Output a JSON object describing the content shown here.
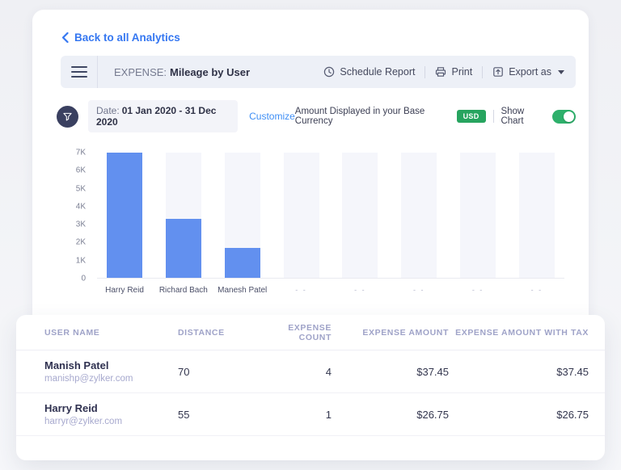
{
  "back_link": "Back to all Analytics",
  "toolbar": {
    "report_type": "EXPENSE:",
    "report_title": "Mileage by User",
    "schedule_label": "Schedule Report",
    "print_label": "Print",
    "export_label": "Export as"
  },
  "filter_bar": {
    "date_label": "Date:",
    "date_range": "01 Jan 2020 - 31 Dec 2020",
    "customize_label": "Customize",
    "currency_note": "Amount Displayed in your Base Currency",
    "currency_badge": "USD",
    "show_chart_label": "Show Chart",
    "show_chart_on": true
  },
  "chart_data": {
    "type": "bar",
    "title": "",
    "xlabel": "",
    "ylabel": "",
    "categories": [
      "Harry Reid",
      "Richard Bach",
      "Manesh Patel",
      "- -",
      "- -",
      "- -",
      "- -",
      "- -"
    ],
    "values": [
      7000,
      3300,
      1650,
      0,
      0,
      0,
      0,
      0
    ],
    "yticks": [
      "7K",
      "6K",
      "5K",
      "4K",
      "3K",
      "2K",
      "1K",
      "0"
    ],
    "ylim": [
      0,
      7000
    ],
    "grid": false,
    "legend": false,
    "bar_color": "#6290ef",
    "track_color": "#f5f6fb"
  },
  "table": {
    "headers": [
      "USER NAME",
      "DISTANCE",
      "EXPENSE COUNT",
      "EXPENSE AMOUNT",
      "EXPENSE AMOUNT WITH TAX"
    ],
    "header_align": [
      "l",
      "l",
      "r",
      "r",
      "r"
    ],
    "rows": [
      {
        "name": "Manish Patel",
        "email": "manishp@zylker.com",
        "distance": "70",
        "expense_count": "4",
        "expense_amount": "$37.45",
        "expense_amount_with_tax": "$37.45"
      },
      {
        "name": "Harry Reid",
        "email": "harryr@zylker.com",
        "distance": "55",
        "expense_count": "1",
        "expense_amount": "$26.75",
        "expense_amount_with_tax": "$26.75"
      }
    ]
  },
  "colors": {
    "accent_blue": "#3577f1",
    "link_blue": "#3e8ef5",
    "bar_blue": "#6290ef",
    "badge_green": "#27a45f",
    "toggle_green": "#2eb06b",
    "filter_circle": "#3a4060",
    "toolbar_bg": "#edf0f7"
  }
}
